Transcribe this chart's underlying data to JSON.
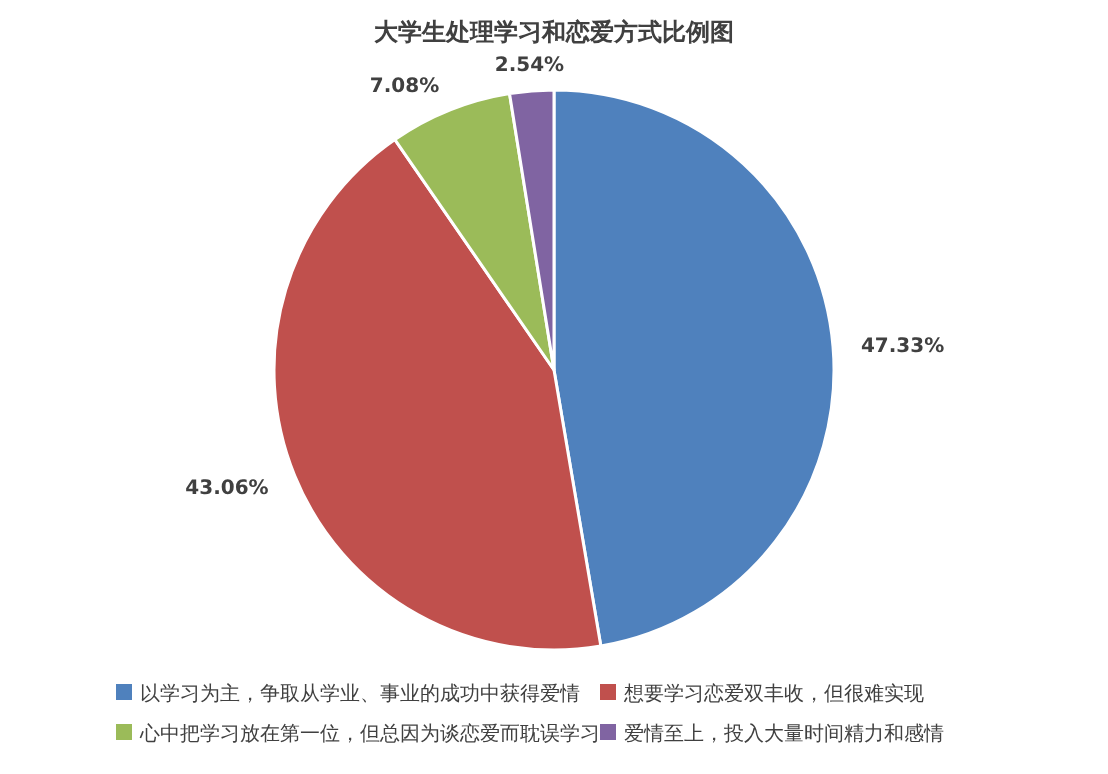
{
  "chart_data": {
    "type": "pie",
    "title": "大学生处理学习和恋爱方式比例图",
    "categories": [
      "以学习为主，争取从学业、事业的成功中获得爱情",
      "想要学习恋爱双丰收，但很难实现",
      "心中把学习放在第一位，但总因为谈恋爱而耽误学习",
      "爱情至上，投入大量时间精力和感情"
    ],
    "values": [
      47.33,
      43.06,
      7.08,
      2.54
    ],
    "value_labels": [
      "47.33%",
      "43.06%",
      "7.08%",
      "2.54%"
    ],
    "colors": [
      "#4f81bd",
      "#c0504d",
      "#9bbb59",
      "#8064a2"
    ],
    "legend": "bottom"
  }
}
